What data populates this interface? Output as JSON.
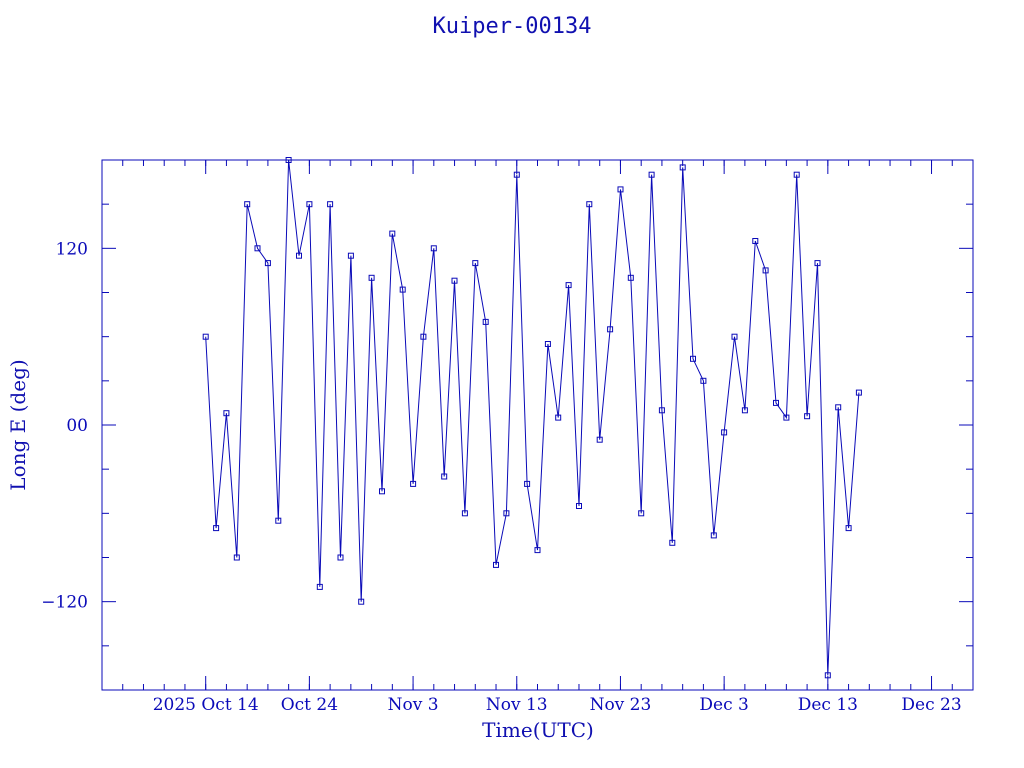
{
  "chart_data": {
    "type": "line",
    "title": "Kuiper-00134",
    "xlabel": "Time(UTC)",
    "ylabel": "Long E (deg)",
    "xlim": [
      "2025-10-04",
      "2025-12-27"
    ],
    "ylim": [
      -180,
      180
    ],
    "y_ticks": [
      {
        "value": 120,
        "label": "120"
      },
      {
        "value": 0,
        "label": "00"
      },
      {
        "value": -120,
        "label": "−120"
      }
    ],
    "x_ticks": [
      {
        "date": "2025-10-14",
        "label": "2025 Oct 14"
      },
      {
        "date": "2025-10-24",
        "label": "Oct 24"
      },
      {
        "date": "2025-11-03",
        "label": "Nov  3"
      },
      {
        "date": "2025-11-13",
        "label": "Nov 13"
      },
      {
        "date": "2025-11-23",
        "label": "Nov 23"
      },
      {
        "date": "2025-12-03",
        "label": "Dec  3"
      },
      {
        "date": "2025-12-13",
        "label": "Dec 13"
      },
      {
        "date": "2025-12-23",
        "label": "Dec 23"
      }
    ],
    "grid": false,
    "series": [
      {
        "x": [
          "2025-10-14",
          "2025-10-15",
          "2025-10-16",
          "2025-10-17",
          "2025-10-18",
          "2025-10-19",
          "2025-10-20",
          "2025-10-21",
          "2025-10-22",
          "2025-10-23",
          "2025-10-24",
          "2025-10-25",
          "2025-10-26",
          "2025-10-27",
          "2025-10-28",
          "2025-10-29",
          "2025-10-30",
          "2025-10-31",
          "2025-11-01",
          "2025-11-02",
          "2025-11-03",
          "2025-11-04",
          "2025-11-05",
          "2025-11-06",
          "2025-11-07",
          "2025-11-08",
          "2025-11-09",
          "2025-11-10",
          "2025-11-11",
          "2025-11-12",
          "2025-11-13",
          "2025-11-14",
          "2025-11-15",
          "2025-11-16",
          "2025-11-17",
          "2025-11-18",
          "2025-11-19",
          "2025-11-20",
          "2025-11-21",
          "2025-11-22",
          "2025-11-23",
          "2025-11-24",
          "2025-11-25",
          "2025-11-26",
          "2025-11-27",
          "2025-11-28",
          "2025-11-29",
          "2025-11-30",
          "2025-12-01",
          "2025-12-02",
          "2025-12-03",
          "2025-12-04",
          "2025-12-05",
          "2025-12-06",
          "2025-12-07",
          "2025-12-08",
          "2025-12-09",
          "2025-12-10",
          "2025-12-11",
          "2025-12-12",
          "2025-12-13",
          "2025-12-14",
          "2025-12-15",
          "2025-12-16"
        ],
        "y": [
          60,
          -70,
          8,
          -90,
          150,
          120,
          110,
          -65,
          180,
          115,
          150,
          -110,
          150,
          -90,
          115,
          -120,
          100,
          -45,
          130,
          92,
          -40,
          60,
          120,
          -35,
          98,
          -60,
          110,
          70,
          -95,
          -60,
          170,
          -40,
          -85,
          55,
          5,
          95,
          -55,
          150,
          -10,
          65,
          160,
          100,
          -60,
          170,
          10,
          -80,
          175,
          45,
          30,
          -75,
          -5,
          60,
          10,
          125,
          105,
          15,
          5,
          170,
          6,
          110,
          -170,
          12,
          -70,
          22
        ]
      }
    ]
  }
}
